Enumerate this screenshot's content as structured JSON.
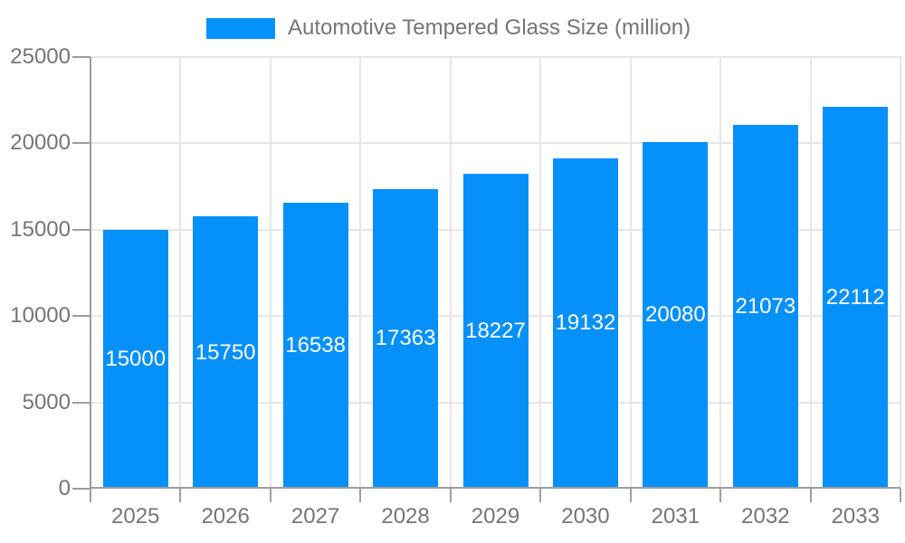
{
  "legend": {
    "label": "Automotive Tempered Glass Size (million)"
  },
  "chart_data": {
    "type": "bar",
    "title": "Automotive Tempered Glass Size (million)",
    "series_name": "Automotive Tempered Glass Size (million)",
    "categories": [
      "2025",
      "2026",
      "2027",
      "2028",
      "2029",
      "2030",
      "2031",
      "2032",
      "2033"
    ],
    "values": [
      15000,
      15750,
      16538,
      17363,
      18227,
      19132,
      20080,
      21073,
      22112
    ],
    "bar_value_labels": [
      "15000",
      "15750",
      "16538",
      "17363",
      "18227",
      "19132",
      "20080",
      "21073",
      "22112"
    ],
    "xlabel": "",
    "ylabel": "",
    "ylim": [
      0,
      25000
    ],
    "yticks": [
      0,
      5000,
      10000,
      15000,
      20000,
      25000
    ],
    "ytick_labels": [
      "0",
      "5000",
      "10000",
      "15000",
      "20000",
      "25000"
    ],
    "grid": true,
    "legend_position": "top",
    "value_labels_position": "inside-center",
    "colors": {
      "bar": "#0690fa",
      "bar_label": "#ffffff",
      "axis": "#9e9e9e",
      "grid": "#e6e6e6",
      "text": "#757575",
      "background": "#ffffff"
    }
  }
}
